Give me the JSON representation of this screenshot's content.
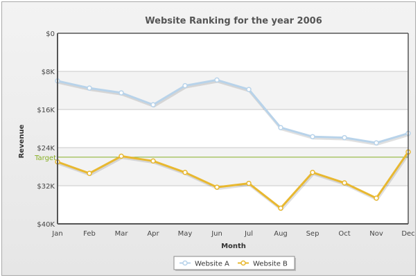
{
  "chart_data": {
    "type": "line",
    "title": "Website Ranking for the year 2006",
    "xlabel": "Month",
    "ylabel": "Revenue",
    "categories": [
      "Jan",
      "Feb",
      "Mar",
      "Apr",
      "May",
      "Jun",
      "Jul",
      "Aug",
      "Sep",
      "Oct",
      "Nov",
      "Dec"
    ],
    "y_ticks": [
      "$0",
      "$8K",
      "$16K",
      "$24K",
      "$32K",
      "$40K"
    ],
    "ylim": [
      0,
      40000
    ],
    "y_inverted": true,
    "grid": true,
    "series": [
      {
        "name": "Website A",
        "color": "#b8d3ea",
        "values": [
          10000,
          11500,
          12500,
          15000,
          11000,
          9800,
          11800,
          19800,
          21700,
          21900,
          23000,
          21000
        ]
      },
      {
        "name": "Website B",
        "color": "#e8b830",
        "values": [
          27000,
          29400,
          25800,
          26800,
          29200,
          32300,
          31500,
          36700,
          29200,
          31400,
          34600,
          24900
        ]
      }
    ],
    "trendline": {
      "label": "Target",
      "value": 26000,
      "color": "#88b024"
    },
    "legend_position": "bottom-center"
  }
}
